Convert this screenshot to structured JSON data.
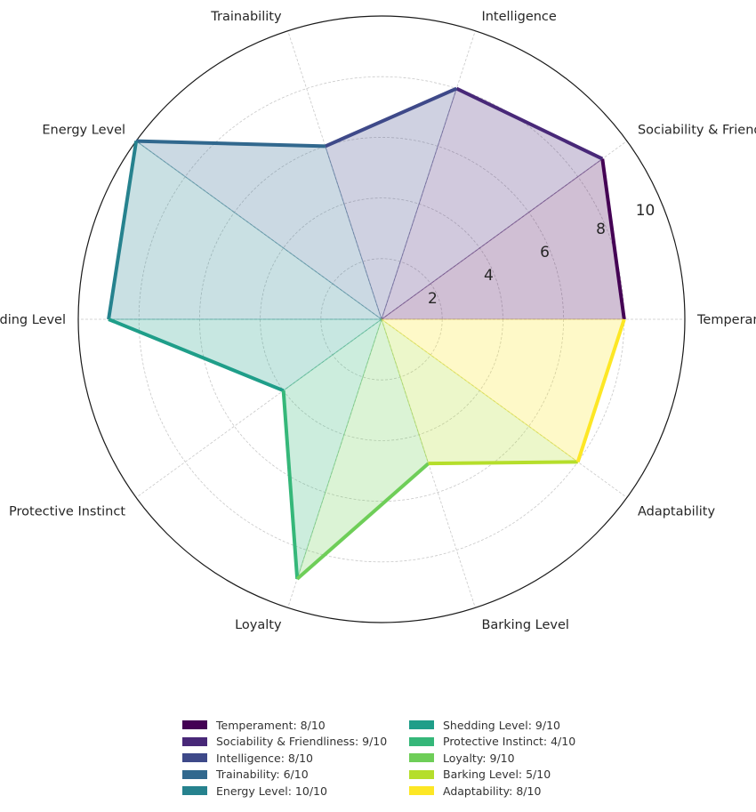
{
  "chart_data": {
    "type": "radar",
    "axes": [
      "Temperament",
      "Sociability & Friendliness",
      "Intelligence",
      "Trainability",
      "Energy Level",
      "Shedding Level",
      "Protective Instinct",
      "Loyalty",
      "Barking Level",
      "Adaptability"
    ],
    "values": [
      8,
      9,
      8,
      6,
      10,
      9,
      4,
      9,
      5,
      8
    ],
    "max": 10,
    "rlim": [
      0,
      10
    ],
    "r_ticks": [
      "2",
      "4",
      "6",
      "8",
      "10"
    ],
    "r_tick_values": [
      2,
      4,
      6,
      8,
      10
    ],
    "grid": true,
    "legend_position": "bottom",
    "colors": [
      "#440154",
      "#482878",
      "#3e4989",
      "#31688e",
      "#26828e",
      "#1f9e89",
      "#35b779",
      "#6ece58",
      "#b5de2b",
      "#fde725"
    ],
    "legend": [
      "Temperament: 8/10",
      "Sociability & Friendliness: 9/10",
      "Intelligence: 8/10",
      "Trainability: 6/10",
      "Energy Level: 10/10",
      "Shedding Level: 9/10",
      "Protective Instinct: 4/10",
      "Loyalty: 9/10",
      "Barking Level: 5/10",
      "Adaptability: 8/10"
    ]
  }
}
